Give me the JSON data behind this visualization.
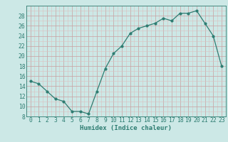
{
  "x": [
    0,
    1,
    2,
    3,
    4,
    5,
    6,
    7,
    8,
    9,
    10,
    11,
    12,
    13,
    14,
    15,
    16,
    17,
    18,
    19,
    20,
    21,
    22,
    23
  ],
  "y": [
    15,
    14.5,
    13,
    11.5,
    11,
    9,
    9,
    8.5,
    13,
    17.5,
    20.5,
    22,
    24.5,
    25.5,
    26,
    26.5,
    27.5,
    27,
    28.5,
    28.5,
    29,
    26.5,
    24,
    18
  ],
  "line_color": "#2e7d72",
  "bg_color": "#cce8e6",
  "grid_color_major": "#aacfcc",
  "grid_color_minor": "#c0dedd",
  "xlabel": "Humidex (Indice chaleur)",
  "xlabel_fontsize": 6.5,
  "tick_fontsize": 5.8,
  "ylim": [
    8,
    30
  ],
  "yticks": [
    8,
    10,
    12,
    14,
    16,
    18,
    20,
    22,
    24,
    26,
    28
  ],
  "xlim": [
    -0.5,
    23.5
  ],
  "xticks": [
    0,
    1,
    2,
    3,
    4,
    5,
    6,
    7,
    8,
    9,
    10,
    11,
    12,
    13,
    14,
    15,
    16,
    17,
    18,
    19,
    20,
    21,
    22,
    23
  ]
}
